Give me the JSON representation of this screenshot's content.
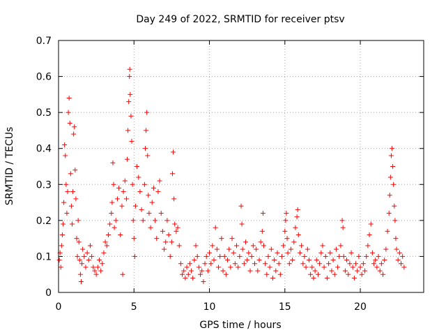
{
  "chart_data": {
    "type": "scatter",
    "title": "Day 249 of 2022, SRMTID for receiver ptsv",
    "xlabel": "GPS time / hours",
    "ylabel": "SRMTID / TECUs",
    "xlim": [
      0,
      24.2
    ],
    "ylim": [
      0,
      0.7
    ],
    "xticks": [
      0,
      5,
      10,
      15,
      20
    ],
    "yticks": [
      0,
      0.1,
      0.2,
      0.3,
      0.4,
      0.5,
      0.6,
      0.7
    ],
    "xtick_labels": [
      "0",
      "5",
      "10",
      "15",
      "20"
    ],
    "ytick_labels": [
      "0",
      "0.1",
      "0.2",
      "0.3",
      "0.4",
      "0.5",
      "0.6",
      "0.7"
    ],
    "grid": true,
    "marker": "+",
    "marker_color": "#ff0000",
    "series": [
      {
        "name": "SRMTID",
        "points": [
          [
            0.05,
            0.09
          ],
          [
            0.1,
            0.11
          ],
          [
            0.15,
            0.07
          ],
          [
            0.2,
            0.13
          ],
          [
            0.25,
            0.16
          ],
          [
            0.3,
            0.19
          ],
          [
            0.35,
            0.25
          ],
          [
            0.4,
            0.41
          ],
          [
            0.45,
            0.38
          ],
          [
            0.5,
            0.3
          ],
          [
            0.55,
            0.22
          ],
          [
            0.6,
            0.28
          ],
          [
            0.65,
            0.5
          ],
          [
            0.7,
            0.54
          ],
          [
            0.75,
            0.47
          ],
          [
            0.8,
            0.33
          ],
          [
            0.85,
            0.24
          ],
          [
            0.9,
            0.19
          ],
          [
            0.95,
            0.28
          ],
          [
            1.0,
            0.44
          ],
          [
            1.05,
            0.46
          ],
          [
            1.1,
            0.34
          ],
          [
            1.15,
            0.26
          ],
          [
            1.2,
            0.15
          ],
          [
            1.25,
            0.1
          ],
          [
            1.3,
            0.2
          ],
          [
            1.35,
            0.14
          ],
          [
            1.4,
            0.09
          ],
          [
            1.45,
            0.05
          ],
          [
            1.5,
            0.03
          ],
          [
            1.55,
            0.08
          ],
          [
            1.6,
            0.12
          ],
          [
            1.7,
            0.1
          ],
          [
            1.8,
            0.07
          ],
          [
            1.9,
            0.11
          ],
          [
            2.0,
            0.09
          ],
          [
            2.1,
            0.13
          ],
          [
            2.2,
            0.1
          ],
          [
            2.3,
            0.07
          ],
          [
            2.4,
            0.06
          ],
          [
            2.5,
            0.05
          ],
          [
            2.6,
            0.07
          ],
          [
            2.7,
            0.09
          ],
          [
            2.8,
            0.06
          ],
          [
            2.9,
            0.08
          ],
          [
            3.0,
            0.11
          ],
          [
            3.1,
            0.14
          ],
          [
            3.2,
            0.13
          ],
          [
            3.3,
            0.16
          ],
          [
            3.4,
            0.19
          ],
          [
            3.5,
            0.22
          ],
          [
            3.55,
            0.25
          ],
          [
            3.6,
            0.36
          ],
          [
            3.65,
            0.3
          ],
          [
            3.7,
            0.18
          ],
          [
            3.8,
            0.2
          ],
          [
            3.9,
            0.26
          ],
          [
            4.0,
            0.29
          ],
          [
            4.1,
            0.16
          ],
          [
            4.2,
            0.24
          ],
          [
            4.25,
            0.05
          ],
          [
            4.3,
            0.28
          ],
          [
            4.4,
            0.31
          ],
          [
            4.5,
            0.26
          ],
          [
            4.55,
            0.37
          ],
          [
            4.6,
            0.45
          ],
          [
            4.65,
            0.53
          ],
          [
            4.7,
            0.6
          ],
          [
            4.72,
            0.62
          ],
          [
            4.75,
            0.55
          ],
          [
            4.8,
            0.49
          ],
          [
            4.85,
            0.42
          ],
          [
            4.9,
            0.3
          ],
          [
            4.95,
            0.2
          ],
          [
            5.0,
            0.15
          ],
          [
            5.05,
            0.1
          ],
          [
            5.1,
            0.24
          ],
          [
            5.2,
            0.35
          ],
          [
            5.3,
            0.32
          ],
          [
            5.4,
            0.28
          ],
          [
            5.5,
            0.23
          ],
          [
            5.6,
            0.2
          ],
          [
            5.7,
            0.3
          ],
          [
            5.75,
            0.4
          ],
          [
            5.8,
            0.45
          ],
          [
            5.85,
            0.5
          ],
          [
            5.9,
            0.38
          ],
          [
            5.95,
            0.27
          ],
          [
            6.0,
            0.22
          ],
          [
            6.1,
            0.18
          ],
          [
            6.2,
            0.25
          ],
          [
            6.3,
            0.29
          ],
          [
            6.4,
            0.2
          ],
          [
            6.5,
            0.15
          ],
          [
            6.6,
            0.28
          ],
          [
            6.7,
            0.31
          ],
          [
            6.8,
            0.22
          ],
          [
            6.9,
            0.17
          ],
          [
            7.0,
            0.12
          ],
          [
            7.1,
            0.14
          ],
          [
            7.2,
            0.2
          ],
          [
            7.3,
            0.16
          ],
          [
            7.4,
            0.1
          ],
          [
            7.5,
            0.14
          ],
          [
            7.55,
            0.33
          ],
          [
            7.6,
            0.39
          ],
          [
            7.65,
            0.26
          ],
          [
            7.7,
            0.19
          ],
          [
            7.8,
            0.17
          ],
          [
            7.9,
            0.18
          ],
          [
            8.0,
            0.13
          ],
          [
            8.1,
            0.08
          ],
          [
            8.2,
            0.05
          ],
          [
            8.3,
            0.06
          ],
          [
            8.4,
            0.04
          ],
          [
            8.5,
            0.07
          ],
          [
            8.6,
            0.05
          ],
          [
            8.7,
            0.08
          ],
          [
            8.8,
            0.06
          ],
          [
            8.9,
            0.04
          ],
          [
            9.0,
            0.09
          ],
          [
            9.1,
            0.13
          ],
          [
            9.2,
            0.1
          ],
          [
            9.3,
            0.07
          ],
          [
            9.4,
            0.05
          ],
          [
            9.5,
            0.06
          ],
          [
            9.6,
            0.03
          ],
          [
            9.7,
            0.08
          ],
          [
            9.8,
            0.1
          ],
          [
            9.9,
            0.06
          ],
          [
            10.0,
            0.11
          ],
          [
            10.1,
            0.08
          ],
          [
            10.2,
            0.13
          ],
          [
            10.3,
            0.09
          ],
          [
            10.4,
            0.18
          ],
          [
            10.5,
            0.12
          ],
          [
            10.6,
            0.07
          ],
          [
            10.7,
            0.1
          ],
          [
            10.8,
            0.15
          ],
          [
            10.9,
            0.06
          ],
          [
            11.0,
            0.1
          ],
          [
            11.1,
            0.05
          ],
          [
            11.2,
            0.09
          ],
          [
            11.3,
            0.12
          ],
          [
            11.4,
            0.07
          ],
          [
            11.5,
            0.15
          ],
          [
            11.6,
            0.11
          ],
          [
            11.7,
            0.08
          ],
          [
            11.8,
            0.13
          ],
          [
            11.9,
            0.07
          ],
          [
            12.0,
            0.1
          ],
          [
            12.1,
            0.24
          ],
          [
            12.15,
            0.19
          ],
          [
            12.2,
            0.12
          ],
          [
            12.3,
            0.08
          ],
          [
            12.4,
            0.14
          ],
          [
            12.5,
            0.09
          ],
          [
            12.6,
            0.11
          ],
          [
            12.7,
            0.06
          ],
          [
            12.8,
            0.1
          ],
          [
            12.9,
            0.13
          ],
          [
            13.0,
            0.08
          ],
          [
            13.1,
            0.12
          ],
          [
            13.2,
            0.06
          ],
          [
            13.3,
            0.09
          ],
          [
            13.4,
            0.14
          ],
          [
            13.5,
            0.17
          ],
          [
            13.55,
            0.22
          ],
          [
            13.6,
            0.13
          ],
          [
            13.7,
            0.08
          ],
          [
            13.8,
            0.05
          ],
          [
            13.9,
            0.1
          ],
          [
            14.0,
            0.07
          ],
          [
            14.1,
            0.12
          ],
          [
            14.2,
            0.04
          ],
          [
            14.3,
            0.09
          ],
          [
            14.4,
            0.06
          ],
          [
            14.5,
            0.11
          ],
          [
            14.6,
            0.08
          ],
          [
            14.7,
            0.05
          ],
          [
            14.8,
            0.1
          ],
          [
            14.9,
            0.13
          ],
          [
            15.0,
            0.17
          ],
          [
            15.05,
            0.2
          ],
          [
            15.1,
            0.22
          ],
          [
            15.15,
            0.15
          ],
          [
            15.2,
            0.11
          ],
          [
            15.3,
            0.08
          ],
          [
            15.4,
            0.12
          ],
          [
            15.5,
            0.09
          ],
          [
            15.6,
            0.14
          ],
          [
            15.7,
            0.18
          ],
          [
            15.8,
            0.21
          ],
          [
            15.85,
            0.23
          ],
          [
            15.9,
            0.16
          ],
          [
            16.0,
            0.11
          ],
          [
            16.1,
            0.13
          ],
          [
            16.2,
            0.08
          ],
          [
            16.3,
            0.1
          ],
          [
            16.4,
            0.07
          ],
          [
            16.5,
            0.12
          ],
          [
            16.6,
            0.09
          ],
          [
            16.7,
            0.05
          ],
          [
            16.8,
            0.07
          ],
          [
            16.9,
            0.04
          ],
          [
            17.0,
            0.06
          ],
          [
            17.1,
            0.09
          ],
          [
            17.2,
            0.05
          ],
          [
            17.3,
            0.08
          ],
          [
            17.4,
            0.11
          ],
          [
            17.5,
            0.13
          ],
          [
            17.6,
            0.07
          ],
          [
            17.7,
            0.1
          ],
          [
            17.8,
            0.04
          ],
          [
            17.9,
            0.08
          ],
          [
            18.0,
            0.11
          ],
          [
            18.1,
            0.06
          ],
          [
            18.2,
            0.09
          ],
          [
            18.3,
            0.05
          ],
          [
            18.4,
            0.12
          ],
          [
            18.5,
            0.07
          ],
          [
            18.6,
            0.1
          ],
          [
            18.7,
            0.13
          ],
          [
            18.8,
            0.2
          ],
          [
            18.85,
            0.18
          ],
          [
            18.9,
            0.1
          ],
          [
            19.0,
            0.06
          ],
          [
            19.1,
            0.09
          ],
          [
            19.2,
            0.05
          ],
          [
            19.3,
            0.08
          ],
          [
            19.4,
            0.11
          ],
          [
            19.5,
            0.07
          ],
          [
            19.6,
            0.04
          ],
          [
            19.7,
            0.08
          ],
          [
            19.8,
            0.06
          ],
          [
            19.9,
            0.1
          ],
          [
            20.0,
            0.07
          ],
          [
            20.1,
            0.05
          ],
          [
            20.2,
            0.08
          ],
          [
            20.3,
            0.06
          ],
          [
            20.4,
            0.1
          ],
          [
            20.5,
            0.13
          ],
          [
            20.6,
            0.16
          ],
          [
            20.7,
            0.19
          ],
          [
            20.8,
            0.11
          ],
          [
            20.9,
            0.08
          ],
          [
            21.0,
            0.09
          ],
          [
            21.1,
            0.07
          ],
          [
            21.2,
            0.1
          ],
          [
            21.3,
            0.06
          ],
          [
            21.4,
            0.08
          ],
          [
            21.5,
            0.05
          ],
          [
            21.6,
            0.09
          ],
          [
            21.7,
            0.12
          ],
          [
            21.8,
            0.17
          ],
          [
            21.9,
            0.22
          ],
          [
            21.95,
            0.27
          ],
          [
            22.0,
            0.32
          ],
          [
            22.05,
            0.38
          ],
          [
            22.1,
            0.4
          ],
          [
            22.15,
            0.35
          ],
          [
            22.2,
            0.3
          ],
          [
            22.25,
            0.24
          ],
          [
            22.3,
            0.2
          ],
          [
            22.35,
            0.15
          ],
          [
            22.4,
            0.12
          ],
          [
            22.5,
            0.09
          ],
          [
            22.6,
            0.11
          ],
          [
            22.7,
            0.08
          ],
          [
            22.8,
            0.1
          ],
          [
            22.9,
            0.07
          ]
        ]
      }
    ]
  }
}
